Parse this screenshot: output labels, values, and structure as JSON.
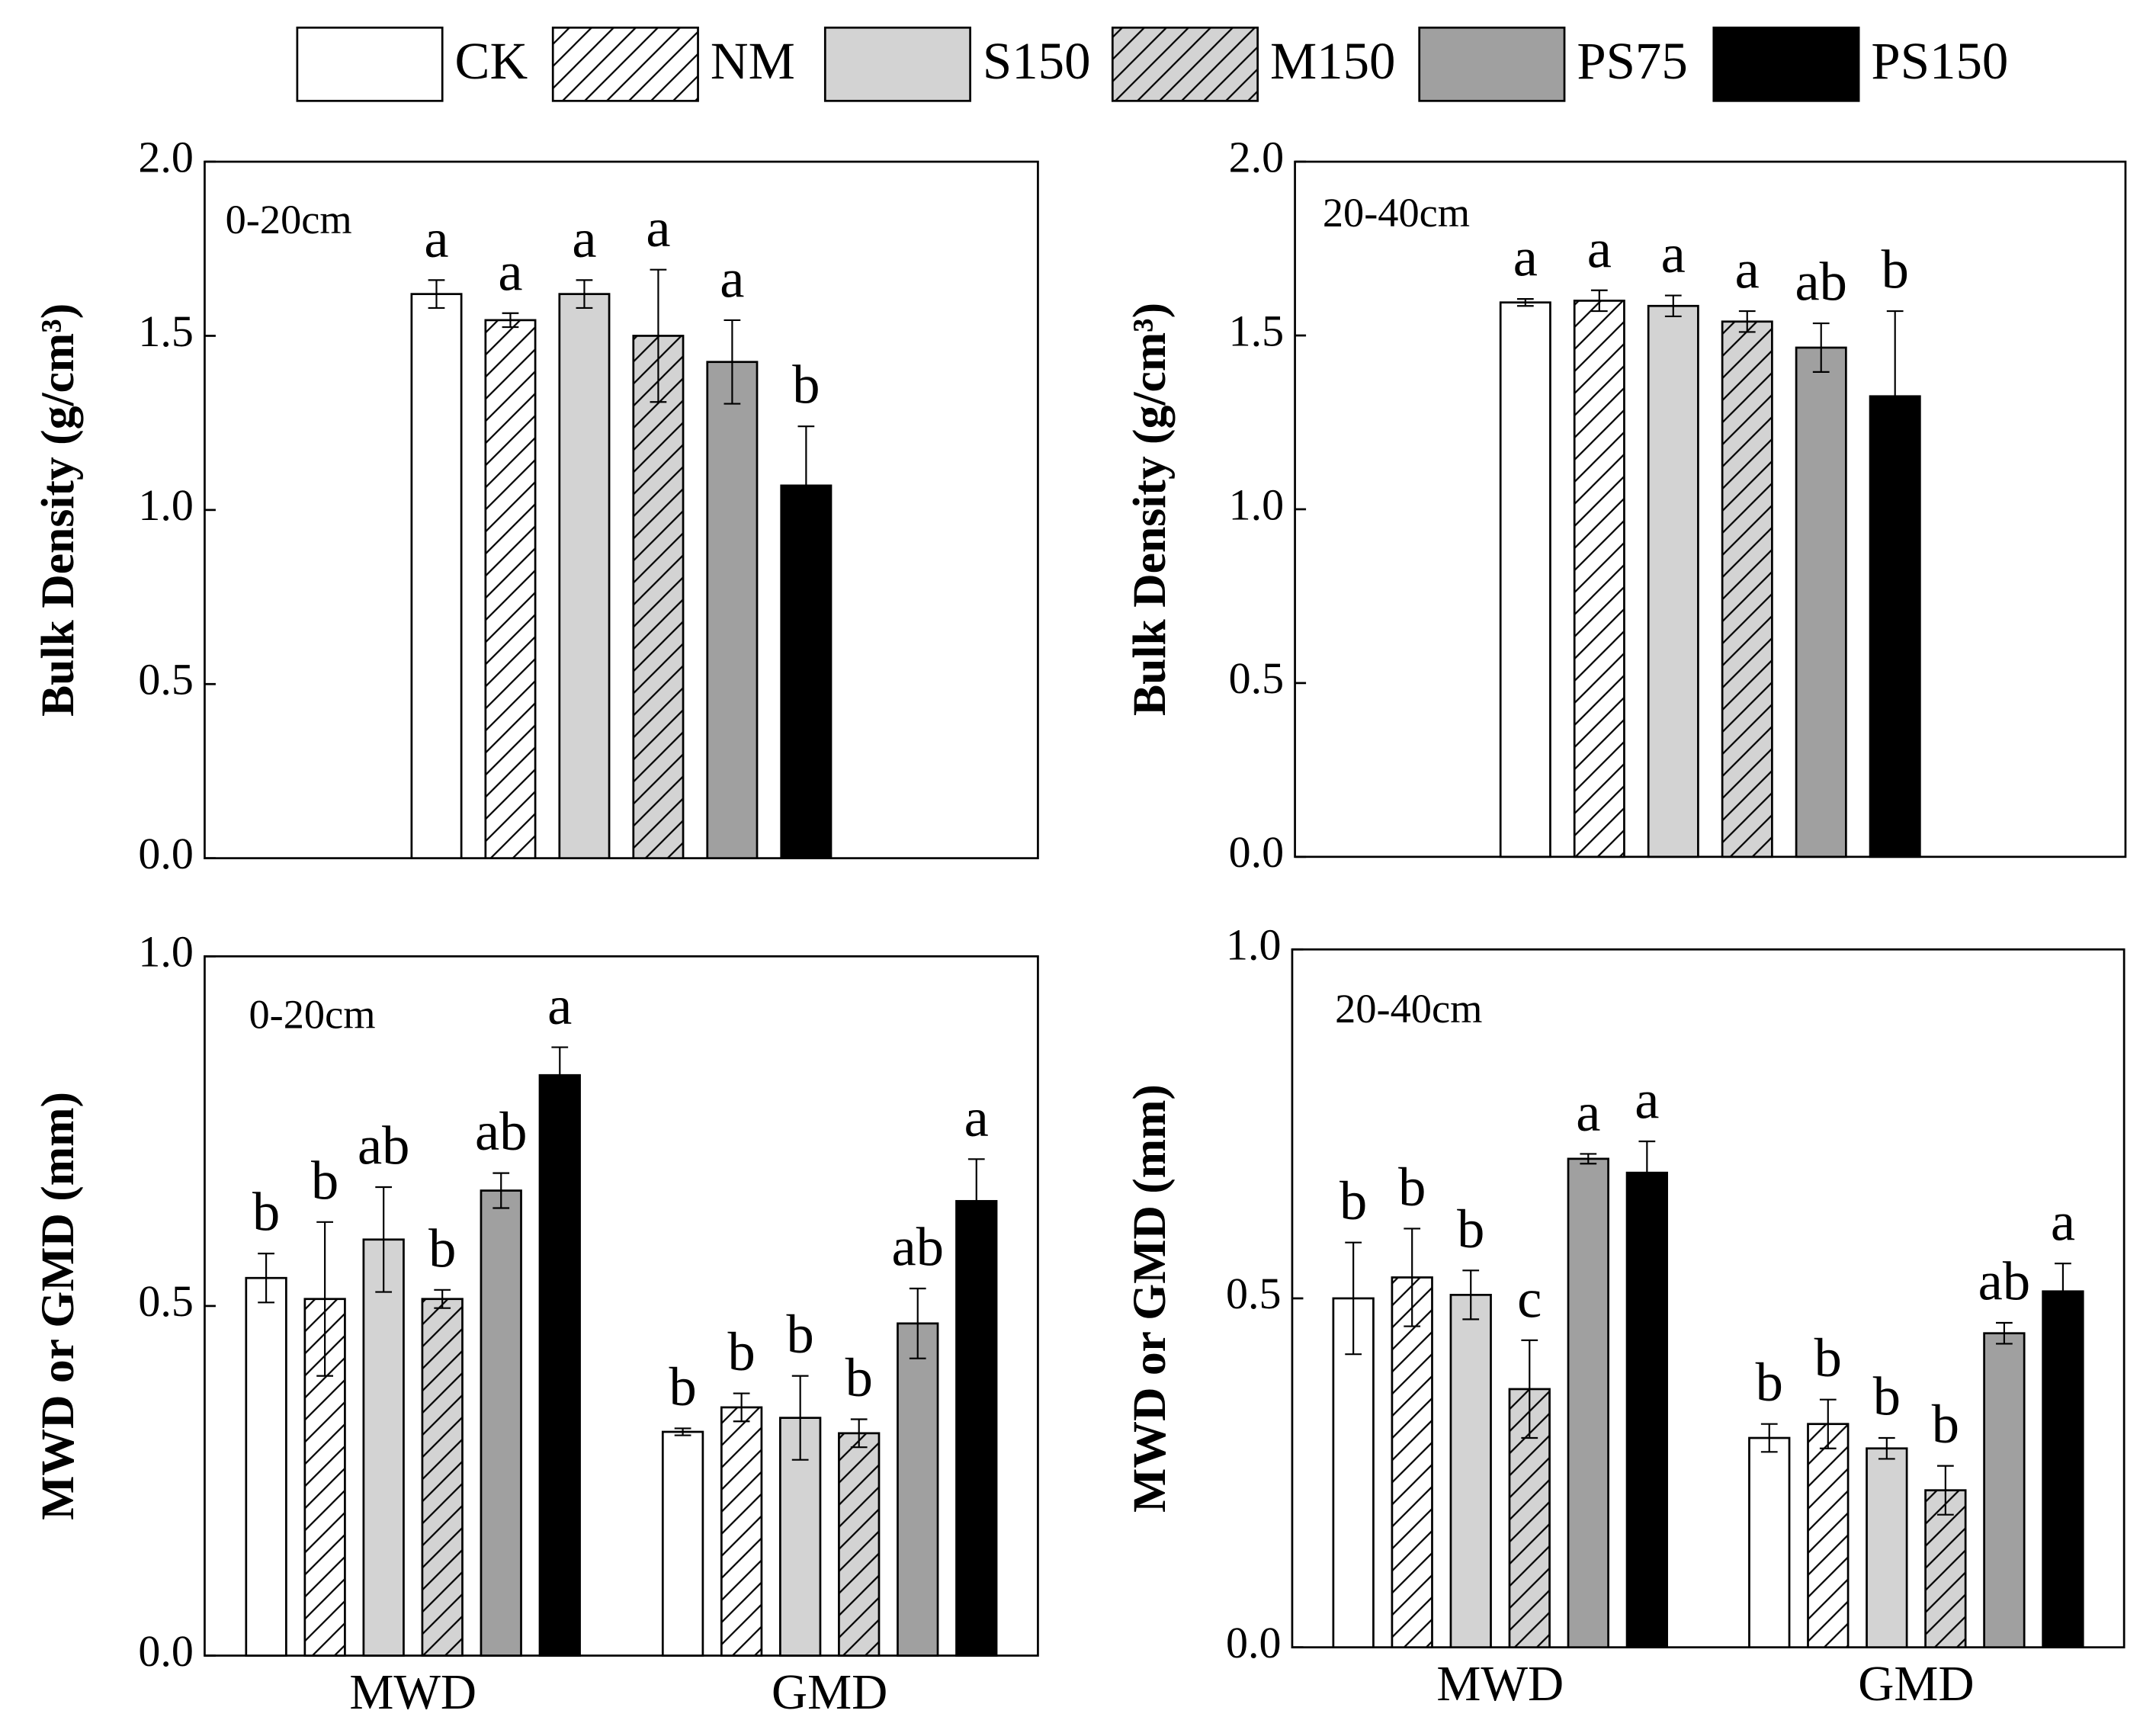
{
  "chart_data": [
    {
      "type": "bar",
      "annotation": "0-20cm",
      "ylabel": "Bulk Density (g/cm³)",
      "categories": [
        null
      ],
      "ylim": [
        0,
        2
      ],
      "yticks": [
        {
          "value": 0,
          "label": "0.0"
        },
        {
          "value": 0.5,
          "label": "0.5"
        },
        {
          "value": 1,
          "label": "1.0"
        },
        {
          "value": 1.5,
          "label": "1.5"
        },
        {
          "value": 2,
          "label": "2.0"
        }
      ],
      "series": [
        {
          "name": "CK",
          "color": "#ffffff",
          "hatch": false,
          "values": [
            1.62
          ],
          "errors": [
            0.04
          ],
          "letters": [
            "a"
          ]
        },
        {
          "name": "NM",
          "color": "#ffffff",
          "hatch": true,
          "values": [
            1.545
          ],
          "errors": [
            0.02
          ],
          "letters": [
            "a"
          ]
        },
        {
          "name": "S150",
          "color": "#d3d3d3",
          "hatch": false,
          "values": [
            1.62
          ],
          "errors": [
            0.04
          ],
          "letters": [
            "a"
          ]
        },
        {
          "name": "M150",
          "color": "#d3d3d3",
          "hatch": true,
          "values": [
            1.5
          ],
          "errors": [
            0.19
          ],
          "letters": [
            "a"
          ]
        },
        {
          "name": "PS75",
          "color": "#a0a0a0",
          "hatch": false,
          "values": [
            1.425
          ],
          "errors": [
            0.12
          ],
          "letters": [
            "a"
          ]
        },
        {
          "name": "PS150",
          "color": "#000000",
          "hatch": false,
          "values": [
            1.07
          ],
          "errors": [
            0.17
          ],
          "letters": [
            "b"
          ]
        }
      ]
    },
    {
      "type": "bar",
      "annotation": "20-40cm",
      "ylabel": "Bulk Density (g/cm³)",
      "categories": [
        null
      ],
      "ylim": [
        0,
        2
      ],
      "yticks": [
        {
          "value": 0,
          "label": "0.0"
        },
        {
          "value": 0.5,
          "label": "0.5"
        },
        {
          "value": 1,
          "label": "1.0"
        },
        {
          "value": 1.5,
          "label": "1.5"
        },
        {
          "value": 2,
          "label": "2.0"
        }
      ],
      "series": [
        {
          "name": "CK",
          "color": "#ffffff",
          "hatch": false,
          "values": [
            1.595
          ],
          "errors": [
            0.01
          ],
          "letters": [
            "a"
          ]
        },
        {
          "name": "NM",
          "color": "#ffffff",
          "hatch": true,
          "values": [
            1.6
          ],
          "errors": [
            0.03
          ],
          "letters": [
            "a"
          ]
        },
        {
          "name": "S150",
          "color": "#d3d3d3",
          "hatch": false,
          "values": [
            1.585
          ],
          "errors": [
            0.03
          ],
          "letters": [
            "a"
          ]
        },
        {
          "name": "M150",
          "color": "#d3d3d3",
          "hatch": true,
          "values": [
            1.54
          ],
          "errors": [
            0.03
          ],
          "letters": [
            "a"
          ]
        },
        {
          "name": "PS75",
          "color": "#a0a0a0",
          "hatch": false,
          "values": [
            1.465
          ],
          "errors": [
            0.07
          ],
          "letters": [
            "ab"
          ]
        },
        {
          "name": "PS150",
          "color": "#000000",
          "hatch": false,
          "values": [
            1.325
          ],
          "errors": [
            0.245
          ],
          "letters": [
            "b"
          ]
        }
      ]
    },
    {
      "type": "bar",
      "annotation": "0-20cm",
      "ylabel": "MWD or GMD (mm)",
      "categories": [
        "MWD",
        "GMD"
      ],
      "ylim": [
        0,
        1
      ],
      "yticks": [
        {
          "value": 0,
          "label": "0.0"
        },
        {
          "value": 0.5,
          "label": "0.5"
        },
        {
          "value": 1,
          "label": "1.0"
        }
      ],
      "series": [
        {
          "name": "CK",
          "color": "#ffffff",
          "hatch": false,
          "values": [
            0.54,
            0.32
          ],
          "errors": [
            0.035,
            0.005
          ],
          "letters": [
            "b",
            "b"
          ]
        },
        {
          "name": "NM",
          "color": "#ffffff",
          "hatch": true,
          "values": [
            0.51,
            0.355
          ],
          "errors": [
            0.11,
            0.02
          ],
          "letters": [
            "b",
            "b"
          ]
        },
        {
          "name": "S150",
          "color": "#d3d3d3",
          "hatch": false,
          "values": [
            0.595,
            0.34
          ],
          "errors": [
            0.075,
            0.06
          ],
          "letters": [
            "ab",
            "b"
          ]
        },
        {
          "name": "M150",
          "color": "#d3d3d3",
          "hatch": true,
          "values": [
            0.51,
            0.318
          ],
          "errors": [
            0.013,
            0.02
          ],
          "letters": [
            "b",
            "b"
          ]
        },
        {
          "name": "PS75",
          "color": "#a0a0a0",
          "hatch": false,
          "values": [
            0.665,
            0.475
          ],
          "errors": [
            0.025,
            0.05
          ],
          "letters": [
            "ab",
            "ab"
          ]
        },
        {
          "name": "PS150",
          "color": "#000000",
          "hatch": false,
          "values": [
            0.83,
            0.65
          ],
          "errors": [
            0.04,
            0.06
          ],
          "letters": [
            "a",
            "a"
          ]
        }
      ]
    },
    {
      "type": "bar",
      "annotation": "20-40cm",
      "ylabel": "MWD or GMD (mm)",
      "categories": [
        "MWD",
        "GMD"
      ],
      "ylim": [
        0,
        1
      ],
      "yticks": [
        {
          "value": 0,
          "label": "0.0"
        },
        {
          "value": 0.5,
          "label": "0.5"
        },
        {
          "value": 1,
          "label": "1.0"
        }
      ],
      "series": [
        {
          "name": "CK",
          "color": "#ffffff",
          "hatch": false,
          "values": [
            0.5,
            0.3
          ],
          "errors": [
            0.08,
            0.02
          ],
          "letters": [
            "b",
            "b"
          ]
        },
        {
          "name": "NM",
          "color": "#ffffff",
          "hatch": true,
          "values": [
            0.53,
            0.32
          ],
          "errors": [
            0.07,
            0.035
          ],
          "letters": [
            "b",
            "b"
          ]
        },
        {
          "name": "S150",
          "color": "#d3d3d3",
          "hatch": false,
          "values": [
            0.505,
            0.285
          ],
          "errors": [
            0.035,
            0.015
          ],
          "letters": [
            "b",
            "b"
          ]
        },
        {
          "name": "M150",
          "color": "#d3d3d3",
          "hatch": true,
          "values": [
            0.37,
            0.225
          ],
          "errors": [
            0.07,
            0.035
          ],
          "letters": [
            "c",
            "b"
          ]
        },
        {
          "name": "PS75",
          "color": "#a0a0a0",
          "hatch": false,
          "values": [
            0.7,
            0.45
          ],
          "errors": [
            0.007,
            0.015
          ],
          "letters": [
            "a",
            "ab"
          ]
        },
        {
          "name": "PS150",
          "color": "#000000",
          "hatch": false,
          "values": [
            0.68,
            0.51
          ],
          "errors": [
            0.045,
            0.04
          ],
          "letters": [
            "a",
            "a"
          ]
        }
      ]
    }
  ]
}
